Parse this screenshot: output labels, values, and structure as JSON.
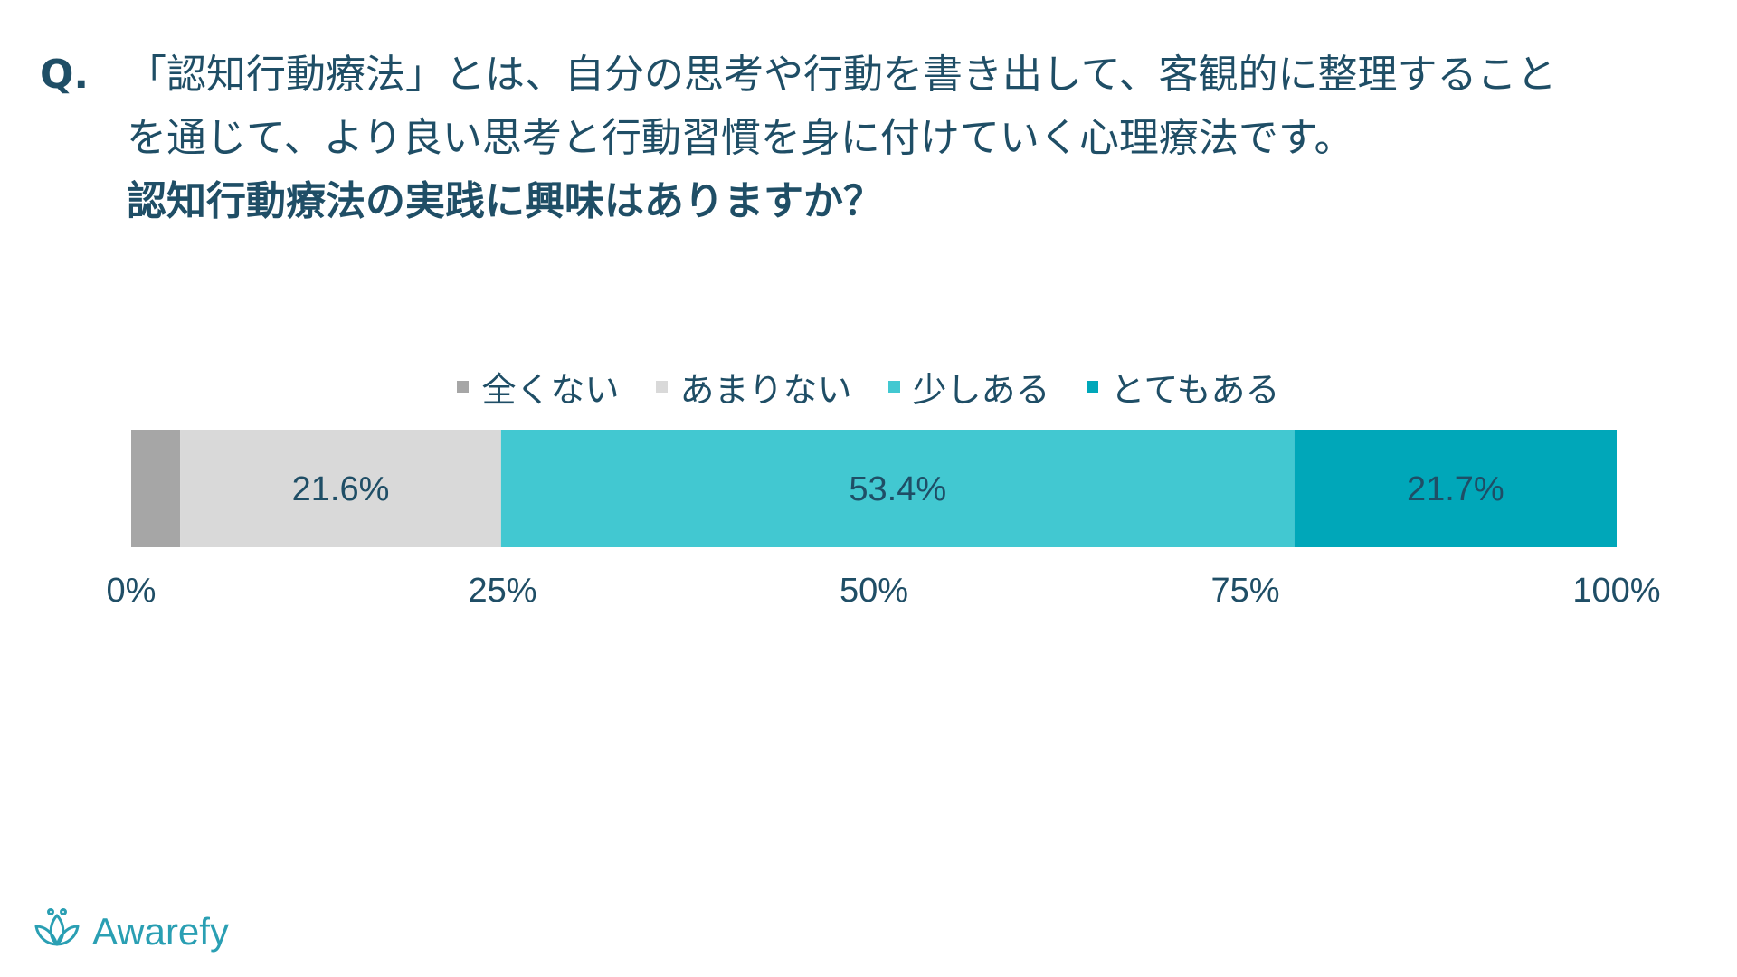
{
  "question": {
    "mark": "Q.",
    "line1": "「認知行動療法」とは、自分の思考や行動を書き出して、客観的に整理すること",
    "line2": "を通じて、より良い思考と行動習慣を身に付けていく心理療法です。",
    "line3": "認知行動療法の実践に興味はありますか？"
  },
  "colors": {
    "none": "#a6a6a6",
    "little": "#d9d9d9",
    "some": "#42c8d1",
    "very": "#00a7b9"
  },
  "chart_data": {
    "type": "bar",
    "orientation": "horizontal-stacked-100",
    "categories": [
      ""
    ],
    "series": [
      {
        "name": "全くない",
        "values": [
          3.3
        ],
        "label": ""
      },
      {
        "name": "あまりない",
        "values": [
          21.6
        ],
        "label": "21.6%"
      },
      {
        "name": "少しある",
        "values": [
          53.4
        ],
        "label": "53.4%"
      },
      {
        "name": "とてもある",
        "values": [
          21.7
        ],
        "label": "21.7%"
      }
    ],
    "xlim": [
      0,
      100
    ],
    "ticks": [
      "0%",
      "25%",
      "50%",
      "75%",
      "100%"
    ],
    "legend_position": "top-center"
  },
  "logo": {
    "text": "Awarefy",
    "icon": "lotus-icon"
  }
}
